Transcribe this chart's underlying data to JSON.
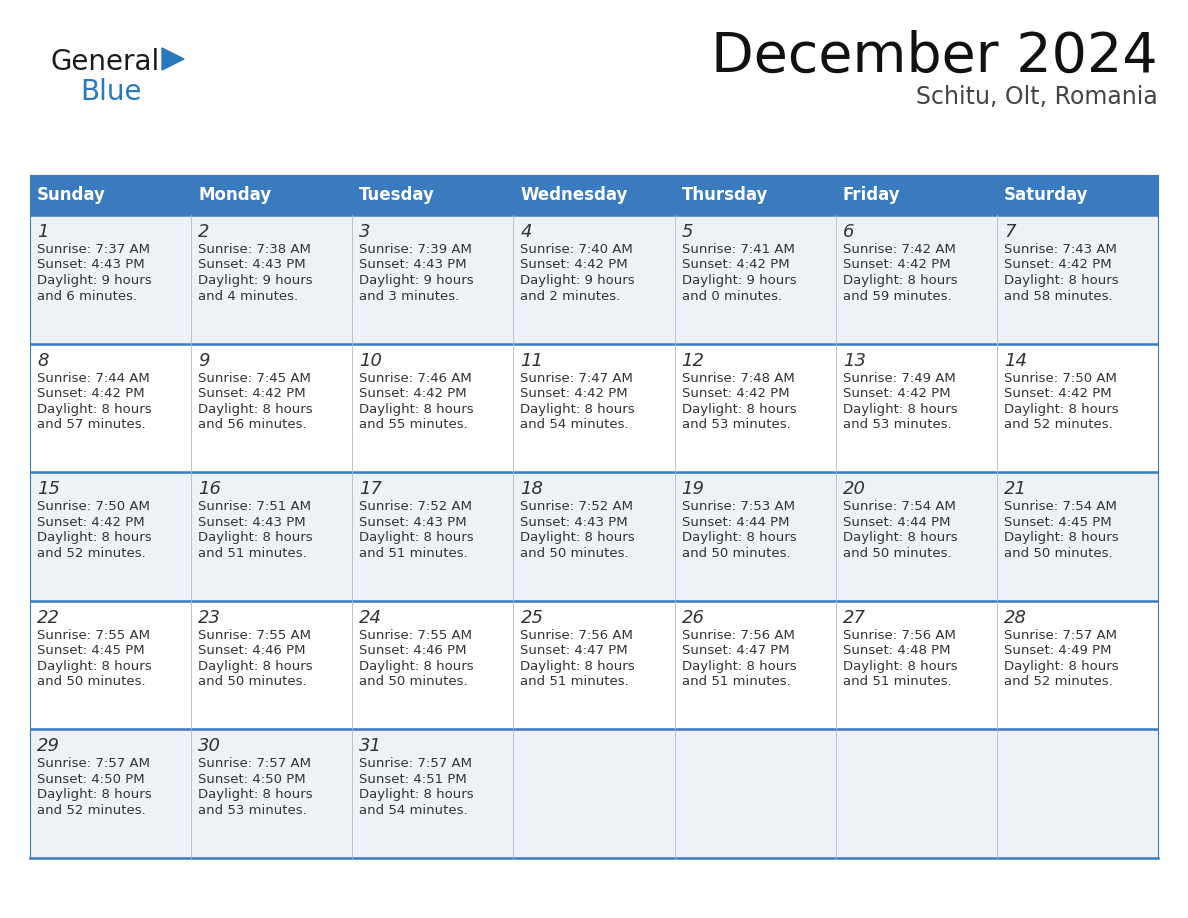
{
  "title": "December 2024",
  "subtitle": "Schitu, Olt, Romania",
  "header_bg_color": "#3a7abf",
  "header_text_color": "#ffffff",
  "row_bg_even": "#eef2f7",
  "row_bg_odd": "#ffffff",
  "divider_color": "#3a7abf",
  "text_color": "#333333",
  "day_headers": [
    "Sunday",
    "Monday",
    "Tuesday",
    "Wednesday",
    "Thursday",
    "Friday",
    "Saturday"
  ],
  "weeks": [
    [
      {
        "day": 1,
        "sunrise": "7:37 AM",
        "sunset": "4:43 PM",
        "daylight_h": "9 hours",
        "daylight_m": "and 6 minutes."
      },
      {
        "day": 2,
        "sunrise": "7:38 AM",
        "sunset": "4:43 PM",
        "daylight_h": "9 hours",
        "daylight_m": "and 4 minutes."
      },
      {
        "day": 3,
        "sunrise": "7:39 AM",
        "sunset": "4:43 PM",
        "daylight_h": "9 hours",
        "daylight_m": "and 3 minutes."
      },
      {
        "day": 4,
        "sunrise": "7:40 AM",
        "sunset": "4:42 PM",
        "daylight_h": "9 hours",
        "daylight_m": "and 2 minutes."
      },
      {
        "day": 5,
        "sunrise": "7:41 AM",
        "sunset": "4:42 PM",
        "daylight_h": "9 hours",
        "daylight_m": "and 0 minutes."
      },
      {
        "day": 6,
        "sunrise": "7:42 AM",
        "sunset": "4:42 PM",
        "daylight_h": "8 hours",
        "daylight_m": "and 59 minutes."
      },
      {
        "day": 7,
        "sunrise": "7:43 AM",
        "sunset": "4:42 PM",
        "daylight_h": "8 hours",
        "daylight_m": "and 58 minutes."
      }
    ],
    [
      {
        "day": 8,
        "sunrise": "7:44 AM",
        "sunset": "4:42 PM",
        "daylight_h": "8 hours",
        "daylight_m": "and 57 minutes."
      },
      {
        "day": 9,
        "sunrise": "7:45 AM",
        "sunset": "4:42 PM",
        "daylight_h": "8 hours",
        "daylight_m": "and 56 minutes."
      },
      {
        "day": 10,
        "sunrise": "7:46 AM",
        "sunset": "4:42 PM",
        "daylight_h": "8 hours",
        "daylight_m": "and 55 minutes."
      },
      {
        "day": 11,
        "sunrise": "7:47 AM",
        "sunset": "4:42 PM",
        "daylight_h": "8 hours",
        "daylight_m": "and 54 minutes."
      },
      {
        "day": 12,
        "sunrise": "7:48 AM",
        "sunset": "4:42 PM",
        "daylight_h": "8 hours",
        "daylight_m": "and 53 minutes."
      },
      {
        "day": 13,
        "sunrise": "7:49 AM",
        "sunset": "4:42 PM",
        "daylight_h": "8 hours",
        "daylight_m": "and 53 minutes."
      },
      {
        "day": 14,
        "sunrise": "7:50 AM",
        "sunset": "4:42 PM",
        "daylight_h": "8 hours",
        "daylight_m": "and 52 minutes."
      }
    ],
    [
      {
        "day": 15,
        "sunrise": "7:50 AM",
        "sunset": "4:42 PM",
        "daylight_h": "8 hours",
        "daylight_m": "and 52 minutes."
      },
      {
        "day": 16,
        "sunrise": "7:51 AM",
        "sunset": "4:43 PM",
        "daylight_h": "8 hours",
        "daylight_m": "and 51 minutes."
      },
      {
        "day": 17,
        "sunrise": "7:52 AM",
        "sunset": "4:43 PM",
        "daylight_h": "8 hours",
        "daylight_m": "and 51 minutes."
      },
      {
        "day": 18,
        "sunrise": "7:52 AM",
        "sunset": "4:43 PM",
        "daylight_h": "8 hours",
        "daylight_m": "and 50 minutes."
      },
      {
        "day": 19,
        "sunrise": "7:53 AM",
        "sunset": "4:44 PM",
        "daylight_h": "8 hours",
        "daylight_m": "and 50 minutes."
      },
      {
        "day": 20,
        "sunrise": "7:54 AM",
        "sunset": "4:44 PM",
        "daylight_h": "8 hours",
        "daylight_m": "and 50 minutes."
      },
      {
        "day": 21,
        "sunrise": "7:54 AM",
        "sunset": "4:45 PM",
        "daylight_h": "8 hours",
        "daylight_m": "and 50 minutes."
      }
    ],
    [
      {
        "day": 22,
        "sunrise": "7:55 AM",
        "sunset": "4:45 PM",
        "daylight_h": "8 hours",
        "daylight_m": "and 50 minutes."
      },
      {
        "day": 23,
        "sunrise": "7:55 AM",
        "sunset": "4:46 PM",
        "daylight_h": "8 hours",
        "daylight_m": "and 50 minutes."
      },
      {
        "day": 24,
        "sunrise": "7:55 AM",
        "sunset": "4:46 PM",
        "daylight_h": "8 hours",
        "daylight_m": "and 50 minutes."
      },
      {
        "day": 25,
        "sunrise": "7:56 AM",
        "sunset": "4:47 PM",
        "daylight_h": "8 hours",
        "daylight_m": "and 51 minutes."
      },
      {
        "day": 26,
        "sunrise": "7:56 AM",
        "sunset": "4:47 PM",
        "daylight_h": "8 hours",
        "daylight_m": "and 51 minutes."
      },
      {
        "day": 27,
        "sunrise": "7:56 AM",
        "sunset": "4:48 PM",
        "daylight_h": "8 hours",
        "daylight_m": "and 51 minutes."
      },
      {
        "day": 28,
        "sunrise": "7:57 AM",
        "sunset": "4:49 PM",
        "daylight_h": "8 hours",
        "daylight_m": "and 52 minutes."
      }
    ],
    [
      {
        "day": 29,
        "sunrise": "7:57 AM",
        "sunset": "4:50 PM",
        "daylight_h": "8 hours",
        "daylight_m": "and 52 minutes."
      },
      {
        "day": 30,
        "sunrise": "7:57 AM",
        "sunset": "4:50 PM",
        "daylight_h": "8 hours",
        "daylight_m": "and 53 minutes."
      },
      {
        "day": 31,
        "sunrise": "7:57 AM",
        "sunset": "4:51 PM",
        "daylight_h": "8 hours",
        "daylight_m": "and 54 minutes."
      },
      null,
      null,
      null,
      null
    ]
  ],
  "logo_color_general": "#1a1a1a",
  "logo_color_blue": "#2878be",
  "logo_triangle_color": "#2878be",
  "title_fontsize": 40,
  "subtitle_fontsize": 17,
  "header_fontsize": 12,
  "day_num_fontsize": 13,
  "cell_text_fontsize": 9.5
}
